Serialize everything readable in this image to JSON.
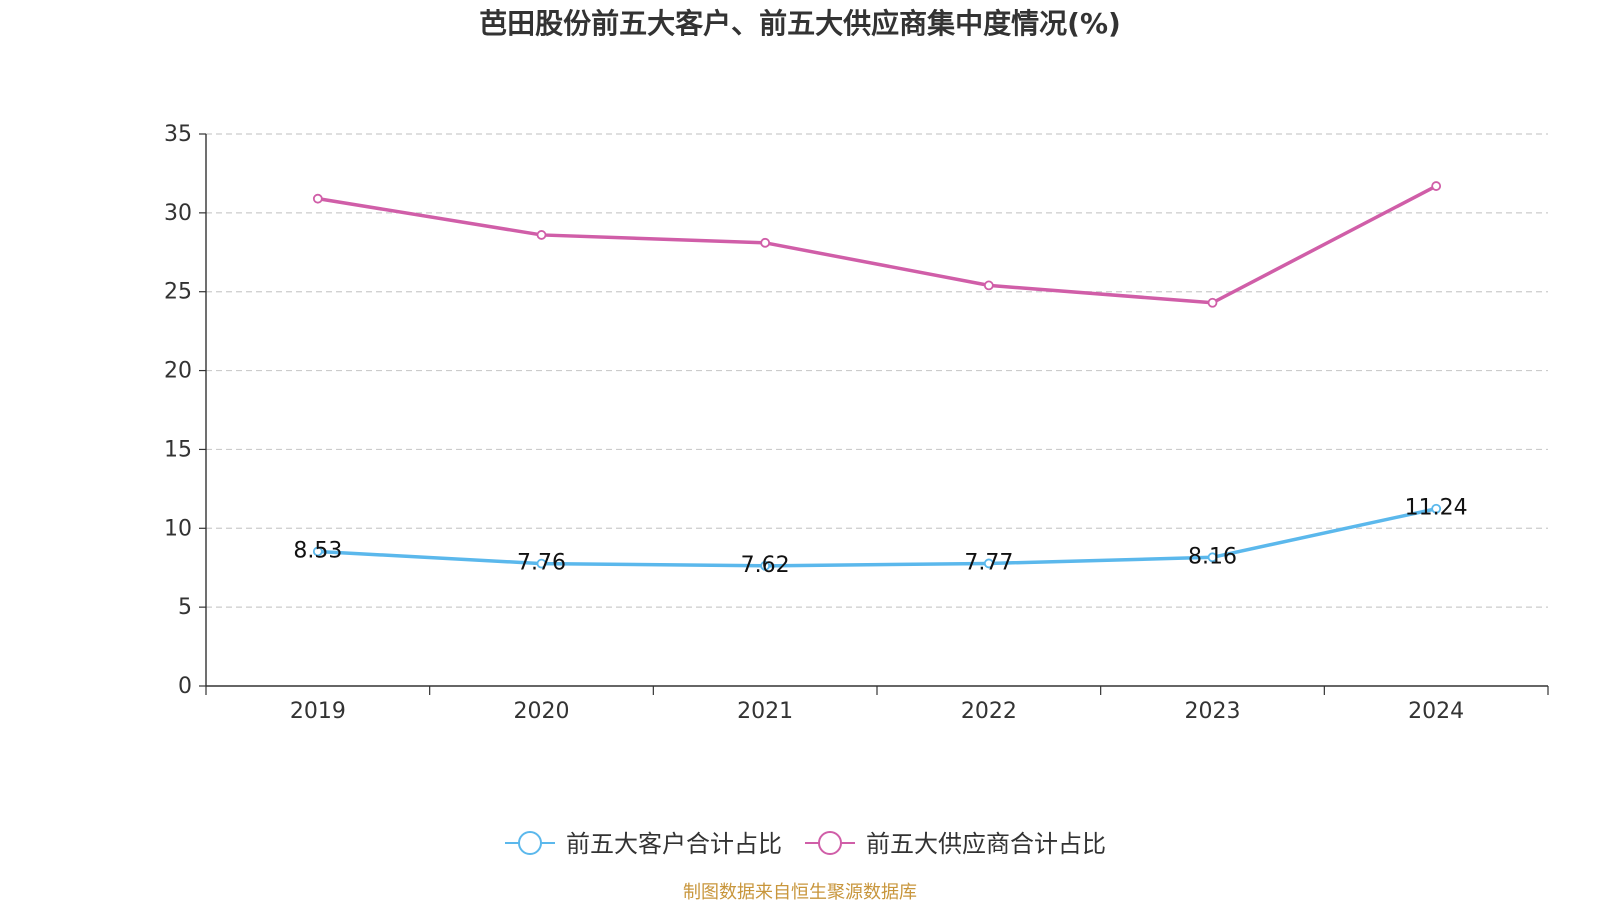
{
  "chart_data": {
    "type": "line",
    "title": "芭田股份前五大客户、前五大供应商集中度情况(%)",
    "categories": [
      "2019",
      "2020",
      "2021",
      "2022",
      "2023",
      "2024"
    ],
    "series": [
      {
        "name": "前五大客户合计占比",
        "color": "#5bb8ec",
        "values": [
          8.53,
          7.76,
          7.62,
          7.77,
          8.16,
          11.24
        ],
        "show_labels": true,
        "labels": [
          "8.53",
          "7.76",
          "7.62",
          "7.77",
          "8.16",
          "11.24"
        ]
      },
      {
        "name": "前五大供应商合计占比",
        "color": "#d05ea8",
        "values": [
          30.9,
          28.6,
          28.1,
          25.4,
          24.3,
          31.7
        ],
        "show_labels": false
      }
    ],
    "ylim": [
      0,
      35
    ],
    "yticks": [
      "0",
      "5",
      "10",
      "15",
      "20",
      "25",
      "30",
      "35"
    ],
    "grid": true,
    "legend_position": "bottom-center",
    "xlabel": "",
    "ylabel": ""
  },
  "source": {
    "text": "制图数据来自恒生聚源数据库",
    "color": "#c8963c"
  }
}
